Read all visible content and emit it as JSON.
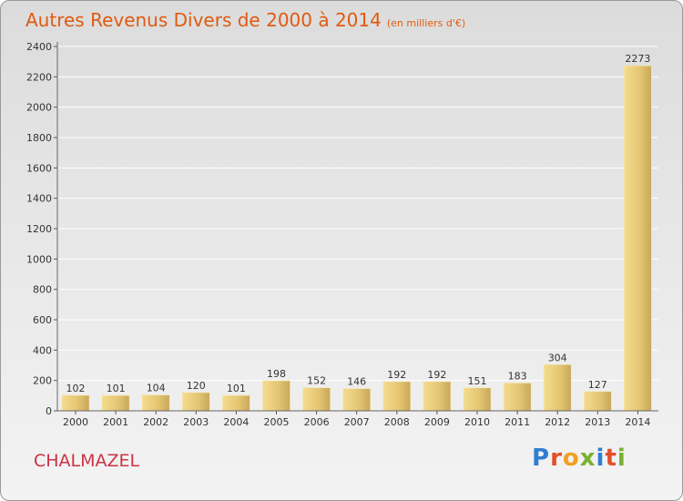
{
  "title": "Autres Revenus Divers de 2000 à 2014",
  "subtitle": "(en milliers d'€)",
  "place": "CHALMAZEL",
  "logo": {
    "text": "Proxiti",
    "colors": [
      "#2f7fd0",
      "#e0502a",
      "#f0a020",
      "#7ab030",
      "#2f7fd0",
      "#e0502a",
      "#7ab030"
    ]
  },
  "chart_data": {
    "type": "bar",
    "title": "Autres Revenus Divers de 2000 à 2014",
    "subtitle": "(en milliers d'€)",
    "categories": [
      "2000",
      "2001",
      "2002",
      "2003",
      "2004",
      "2005",
      "2006",
      "2007",
      "2008",
      "2009",
      "2010",
      "2011",
      "2012",
      "2013",
      "2014"
    ],
    "values": [
      102,
      101,
      104,
      120,
      101,
      198,
      152,
      146,
      192,
      192,
      151,
      183,
      304,
      127,
      2273
    ],
    "ylim": [
      0,
      2400
    ],
    "yticks": [
      0,
      200,
      400,
      600,
      800,
      1000,
      1200,
      1400,
      1600,
      1800,
      2000,
      2200,
      2400
    ],
    "grid": true,
    "bar_color": "#e8cc7a",
    "title_color": "#e05a10",
    "place_color": "#cc3344"
  }
}
